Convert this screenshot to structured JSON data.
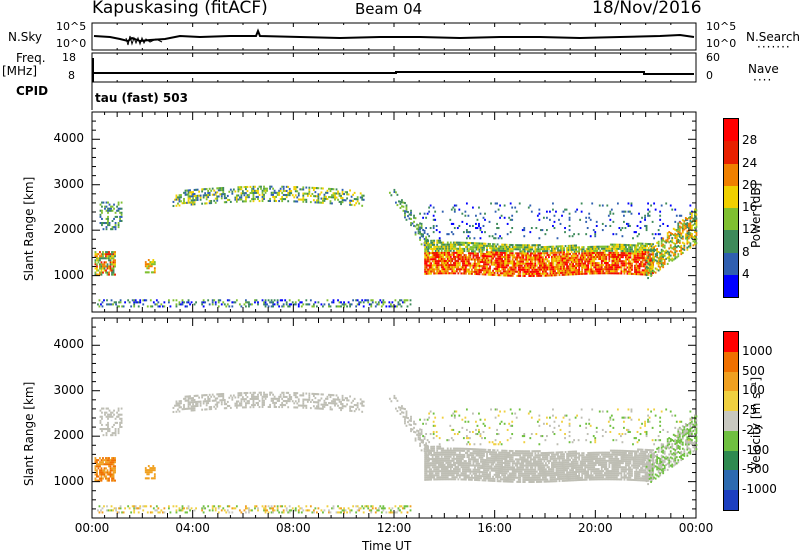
{
  "header": {
    "station": "Kapuskasing (fitACF)",
    "beam": "Beam 04",
    "date": "18/Nov/2016"
  },
  "top_panels": {
    "nsky_label": "N.Sky",
    "nsky_ticks": [
      "10^5",
      "10^0"
    ],
    "nsearch_label": "N.Search",
    "nsearch_ticks": [
      "10^5",
      "10^0"
    ],
    "freq_label": "Freq.",
    "freq_unit": "[MHz]",
    "freq_ticks": [
      "18",
      "8"
    ],
    "nave_label": "Nave",
    "nave_ticks": [
      "60",
      "0"
    ],
    "cpid_label": "CPID",
    "cpid_value": "tau (fast) 503"
  },
  "chart_data": [
    {
      "type": "heatmap",
      "name": "power",
      "xlabel": "Time UT",
      "ylabel": "Slant Range [km]",
      "x_ticks": [
        "00:00",
        "04:00",
        "08:00",
        "12:00",
        "16:00",
        "20:00",
        "00:00"
      ],
      "y_ticks": [
        "1000",
        "2000",
        "3000",
        "4000"
      ],
      "xlim": [
        0,
        24
      ],
      "ylim": [
        200,
        4600
      ],
      "colorbar_label": "Power [dB]",
      "colorbar_ticks": [
        "4",
        "8",
        "12",
        "16",
        "20",
        "24",
        "28"
      ],
      "colorbar_colors": [
        "#0000ff",
        "#2f5fb0",
        "#3d8a5a",
        "#7fc030",
        "#f0d000",
        "#f08000",
        "#e82000",
        "#ff0000"
      ]
    },
    {
      "type": "heatmap",
      "name": "velocity",
      "xlabel": "Time UT",
      "ylabel": "Slant Range [km]",
      "x_ticks": [
        "00:00",
        "04:00",
        "08:00",
        "12:00",
        "16:00",
        "20:00",
        "00:00"
      ],
      "y_ticks": [
        "1000",
        "2000",
        "3000",
        "4000"
      ],
      "xlim": [
        0,
        24
      ],
      "ylim": [
        200,
        4600
      ],
      "colorbar_label": "Velocity [m s⁻¹]",
      "colorbar_ticks": [
        "1000",
        "500",
        "100",
        "25",
        "-25",
        "-100",
        "-500",
        "-1000"
      ],
      "colorbar_colors": [
        "#1c3fc0",
        "#2c6ab0",
        "#2e8a50",
        "#6fc040",
        "#c8c8c0",
        "#f0d040",
        "#f0a020",
        "#f07000",
        "#ff0000"
      ]
    }
  ],
  "colors": {
    "ground_scatter": "#bebeb4"
  }
}
